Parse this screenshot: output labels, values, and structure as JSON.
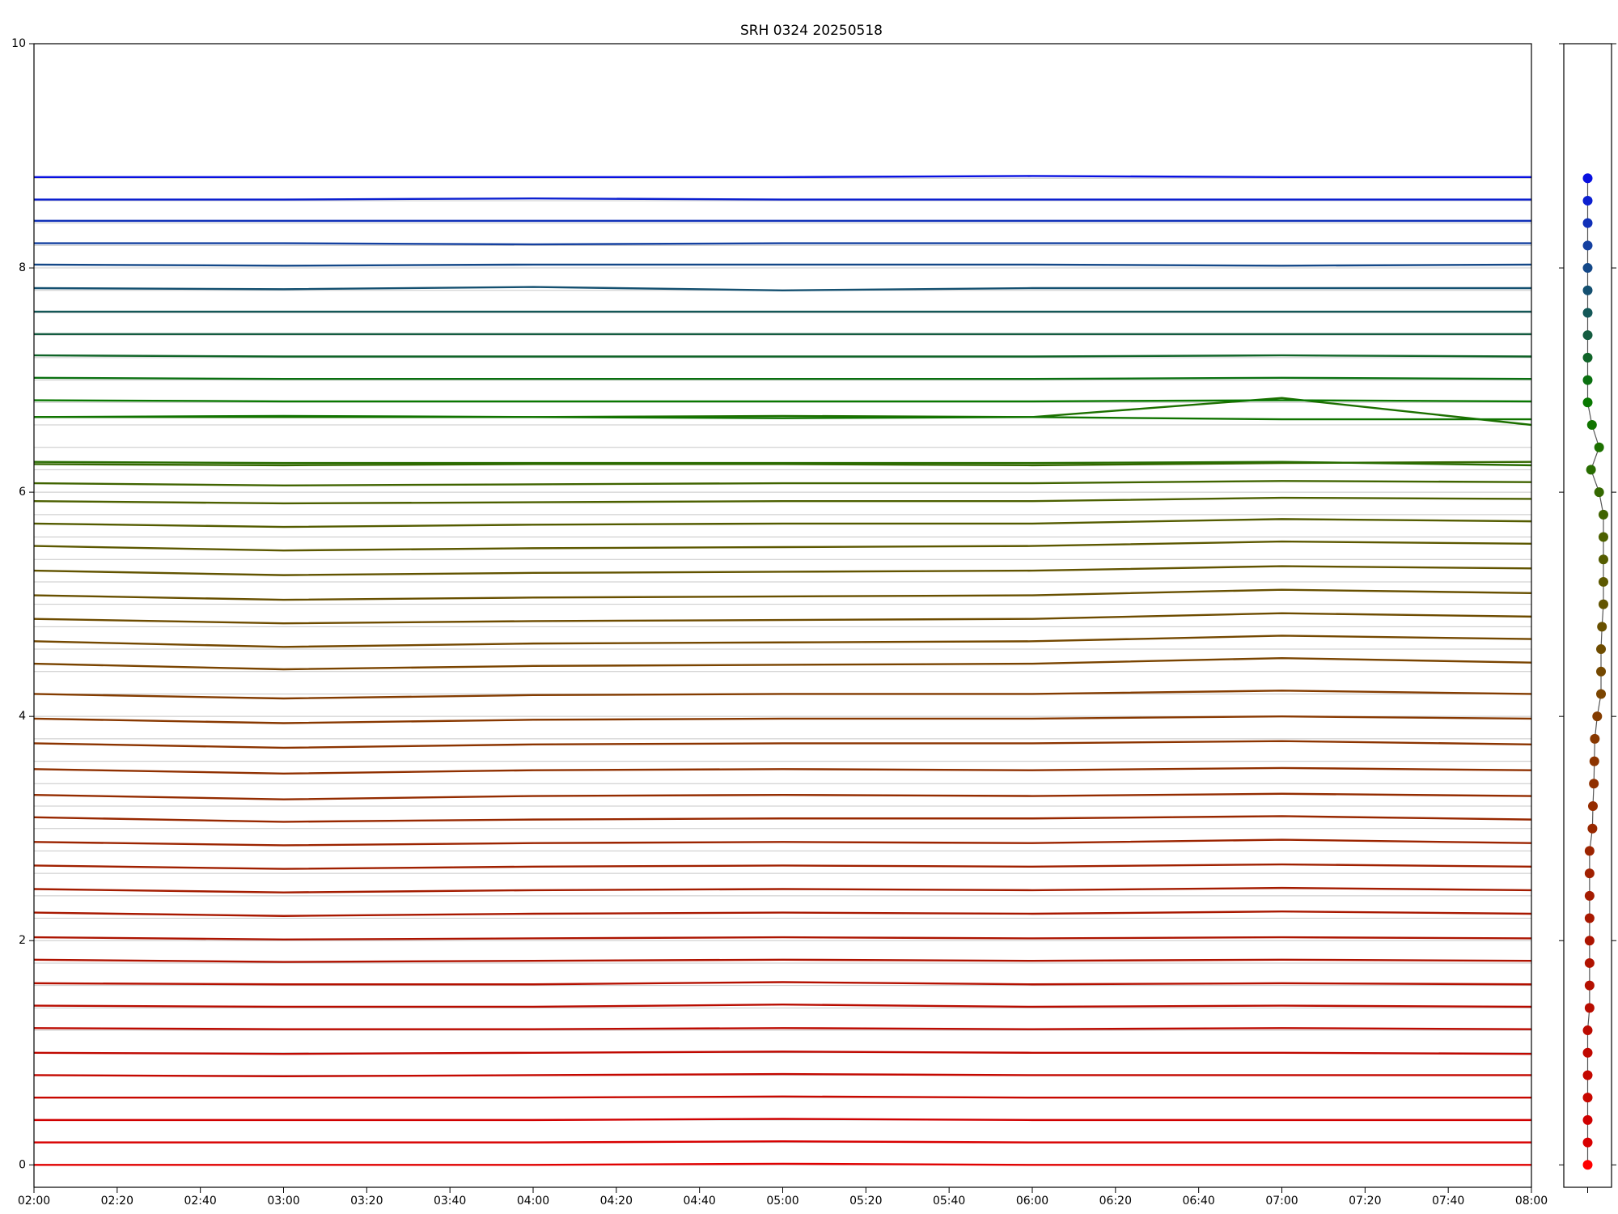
{
  "chart_data": [
    {
      "type": "line",
      "title": "SRH 0324 20250518",
      "x": [
        "02:00",
        "03:00",
        "04:00",
        "05:00",
        "06:00",
        "07:00",
        "08:00"
      ],
      "xlim": [
        "02:00",
        "08:00"
      ],
      "xticks": [
        "02:00",
        "02:20",
        "02:40",
        "03:00",
        "03:20",
        "03:40",
        "04:00",
        "04:20",
        "04:40",
        "05:00",
        "05:20",
        "05:40",
        "06:00",
        "06:20",
        "06:40",
        "07:00",
        "07:20",
        "07:40",
        "08:00"
      ],
      "ylim": [
        -0.2,
        10
      ],
      "yticks": [
        0,
        2,
        4,
        6,
        8,
        10
      ],
      "grid": true,
      "series": [
        {
          "color": "#e00000",
          "values": [
            0,
            0,
            0,
            0.01,
            0,
            0,
            0
          ]
        },
        {
          "color": "#d80000",
          "values": [
            0.2,
            0.2,
            0.2,
            0.21,
            0.2,
            0.2,
            0.2
          ]
        },
        {
          "color": "#d00000",
          "values": [
            0.4,
            0.4,
            0.4,
            0.41,
            0.4,
            0.4,
            0.4
          ]
        },
        {
          "color": "#c80800",
          "values": [
            0.6,
            0.6,
            0.6,
            0.61,
            0.6,
            0.6,
            0.6
          ]
        },
        {
          "color": "#c40800",
          "values": [
            0.8,
            0.79,
            0.8,
            0.81,
            0.8,
            0.8,
            0.8
          ]
        },
        {
          "color": "#c00800",
          "values": [
            1.0,
            0.99,
            1.0,
            1.01,
            1.0,
            1.0,
            0.99
          ]
        },
        {
          "color": "#bc0a00",
          "values": [
            1.22,
            1.21,
            1.21,
            1.22,
            1.21,
            1.22,
            1.21
          ]
        },
        {
          "color": "#b80c00",
          "values": [
            1.42,
            1.41,
            1.41,
            1.43,
            1.41,
            1.42,
            1.41
          ]
        },
        {
          "color": "#b41000",
          "values": [
            1.62,
            1.61,
            1.61,
            1.63,
            1.61,
            1.62,
            1.61
          ]
        },
        {
          "color": "#b01200",
          "values": [
            1.83,
            1.81,
            1.82,
            1.83,
            1.82,
            1.83,
            1.82
          ]
        },
        {
          "color": "#ac1400",
          "values": [
            2.03,
            2.01,
            2.02,
            2.03,
            2.02,
            2.03,
            2.02
          ]
        },
        {
          "color": "#a81800",
          "values": [
            2.25,
            2.22,
            2.24,
            2.25,
            2.24,
            2.26,
            2.24
          ]
        },
        {
          "color": "#a41c00",
          "values": [
            2.46,
            2.43,
            2.45,
            2.46,
            2.45,
            2.47,
            2.45
          ]
        },
        {
          "color": "#a02000",
          "values": [
            2.67,
            2.64,
            2.66,
            2.67,
            2.66,
            2.68,
            2.66
          ]
        },
        {
          "color": "#9c2400",
          "values": [
            2.88,
            2.85,
            2.87,
            2.88,
            2.87,
            2.9,
            2.87
          ]
        },
        {
          "color": "#982800",
          "values": [
            3.1,
            3.06,
            3.08,
            3.09,
            3.09,
            3.11,
            3.08
          ]
        },
        {
          "color": "#942c00",
          "values": [
            3.3,
            3.26,
            3.29,
            3.3,
            3.29,
            3.31,
            3.29
          ]
        },
        {
          "color": "#903000",
          "values": [
            3.53,
            3.49,
            3.52,
            3.53,
            3.52,
            3.54,
            3.52
          ]
        },
        {
          "color": "#8c3400",
          "values": [
            3.76,
            3.72,
            3.75,
            3.76,
            3.76,
            3.78,
            3.75
          ]
        },
        {
          "color": "#883800",
          "values": [
            3.98,
            3.94,
            3.97,
            3.98,
            3.98,
            4.0,
            3.98
          ]
        },
        {
          "color": "#843c00",
          "values": [
            4.2,
            4.16,
            4.19,
            4.2,
            4.2,
            4.23,
            4.2
          ]
        },
        {
          "color": "#7a4400",
          "values": [
            4.47,
            4.42,
            4.45,
            4.46,
            4.47,
            4.52,
            4.48
          ]
        },
        {
          "color": "#744800",
          "values": [
            4.67,
            4.62,
            4.65,
            4.66,
            4.67,
            4.72,
            4.69
          ]
        },
        {
          "color": "#6e4c00",
          "values": [
            4.87,
            4.83,
            4.85,
            4.86,
            4.87,
            4.92,
            4.89
          ]
        },
        {
          "color": "#685000",
          "values": [
            5.08,
            5.04,
            5.06,
            5.07,
            5.08,
            5.13,
            5.1
          ]
        },
        {
          "color": "#625400",
          "values": [
            5.3,
            5.26,
            5.28,
            5.29,
            5.3,
            5.34,
            5.32
          ]
        },
        {
          "color": "#5c5800",
          "values": [
            5.52,
            5.48,
            5.5,
            5.51,
            5.52,
            5.56,
            5.54
          ]
        },
        {
          "color": "#545c00",
          "values": [
            5.72,
            5.69,
            5.71,
            5.72,
            5.72,
            5.76,
            5.74
          ]
        },
        {
          "color": "#4c6000",
          "values": [
            5.92,
            5.9,
            5.91,
            5.92,
            5.92,
            5.95,
            5.94
          ]
        },
        {
          "color": "#406400",
          "values": [
            6.08,
            6.06,
            6.07,
            6.08,
            6.08,
            6.1,
            6.09
          ]
        },
        {
          "color": "#346800",
          "values": [
            6.25,
            6.24,
            6.25,
            6.25,
            6.24,
            6.26,
            6.27
          ]
        },
        {
          "color": "#286c00",
          "values": [
            6.27,
            6.26,
            6.26,
            6.26,
            6.26,
            6.27,
            6.24
          ]
        },
        {
          "color": "#1c7000",
          "values": [
            6.67,
            6.67,
            6.67,
            6.68,
            6.67,
            6.84,
            6.6
          ]
        },
        {
          "color": "#107400",
          "values": [
            6.67,
            6.68,
            6.67,
            6.66,
            6.67,
            6.65,
            6.65
          ]
        },
        {
          "color": "#087800",
          "values": [
            6.82,
            6.81,
            6.81,
            6.81,
            6.81,
            6.82,
            6.81
          ]
        },
        {
          "color": "#0a7010",
          "values": [
            7.02,
            7.01,
            7.01,
            7.01,
            7.01,
            7.02,
            7.01
          ]
        },
        {
          "color": "#106428",
          "values": [
            7.22,
            7.21,
            7.21,
            7.21,
            7.21,
            7.22,
            7.21
          ]
        },
        {
          "color": "#145c40",
          "values": [
            7.41,
            7.41,
            7.41,
            7.41,
            7.41,
            7.41,
            7.41
          ]
        },
        {
          "color": "#145858",
          "values": [
            7.61,
            7.61,
            7.61,
            7.61,
            7.61,
            7.61,
            7.61
          ]
        },
        {
          "color": "#145070",
          "values": [
            7.82,
            7.81,
            7.83,
            7.8,
            7.82,
            7.82,
            7.82
          ]
        },
        {
          "color": "#144888",
          "values": [
            8.03,
            8.02,
            8.03,
            8.03,
            8.03,
            8.02,
            8.03
          ]
        },
        {
          "color": "#1440a0",
          "values": [
            8.22,
            8.22,
            8.21,
            8.22,
            8.22,
            8.22,
            8.22
          ]
        },
        {
          "color": "#1030b8",
          "values": [
            8.42,
            8.42,
            8.42,
            8.42,
            8.42,
            8.42,
            8.42
          ]
        },
        {
          "color": "#0c20d0",
          "values": [
            8.61,
            8.61,
            8.62,
            8.61,
            8.61,
            8.61,
            8.61
          ]
        },
        {
          "color": "#0810e0",
          "values": [
            8.81,
            8.81,
            8.81,
            8.81,
            8.82,
            8.81,
            8.81
          ]
        }
      ]
    },
    {
      "type": "scatter",
      "xlim": [
        0,
        1
      ],
      "ylim": [
        -0.2,
        10
      ],
      "line_color": "#555555",
      "x": [
        0.5,
        0.5,
        0.5,
        0.5,
        0.5,
        0.5,
        0.5,
        0.54,
        0.54,
        0.54,
        0.54,
        0.54,
        0.54,
        0.54,
        0.54,
        0.6,
        0.61,
        0.63,
        0.64,
        0.65,
        0.7,
        0.78,
        0.78,
        0.78,
        0.8,
        0.83,
        0.83,
        0.83,
        0.83,
        0.83,
        0.74,
        0.57,
        0.74,
        0.59,
        0.5,
        0.5,
        0.5,
        0.5,
        0.5,
        0.5,
        0.5,
        0.5,
        0.5,
        0.5,
        0.5
      ],
      "y": [
        0,
        0.2,
        0.4,
        0.6,
        0.8,
        1.0,
        1.2,
        1.4,
        1.6,
        1.8,
        2.0,
        2.2,
        2.4,
        2.6,
        2.8,
        3.0,
        3.2,
        3.4,
        3.6,
        3.8,
        4.0,
        4.2,
        4.4,
        4.6,
        4.8,
        5.0,
        5.2,
        5.4,
        5.6,
        5.8,
        6.0,
        6.2,
        6.4,
        6.6,
        6.8,
        7.0,
        7.2,
        7.4,
        7.6,
        7.8,
        8.0,
        8.2,
        8.4,
        8.6,
        8.8
      ],
      "colors": [
        "#ff0000",
        "#d80000",
        "#d00000",
        "#c80800",
        "#c40800",
        "#c00800",
        "#bc0a00",
        "#b80c00",
        "#b41000",
        "#b01200",
        "#ac1400",
        "#a81800",
        "#a41c00",
        "#a02000",
        "#9c2400",
        "#982800",
        "#942c00",
        "#903000",
        "#8c3400",
        "#883800",
        "#843c00",
        "#7a4400",
        "#744800",
        "#6e4c00",
        "#685000",
        "#625400",
        "#5c5800",
        "#545c00",
        "#4c6000",
        "#406400",
        "#346800",
        "#286c00",
        "#1c7000",
        "#107400",
        "#087800",
        "#0a7010",
        "#106428",
        "#145c40",
        "#145858",
        "#145070",
        "#144888",
        "#1440a0",
        "#1030b8",
        "#0c20d0",
        "#0810e0"
      ]
    }
  ]
}
